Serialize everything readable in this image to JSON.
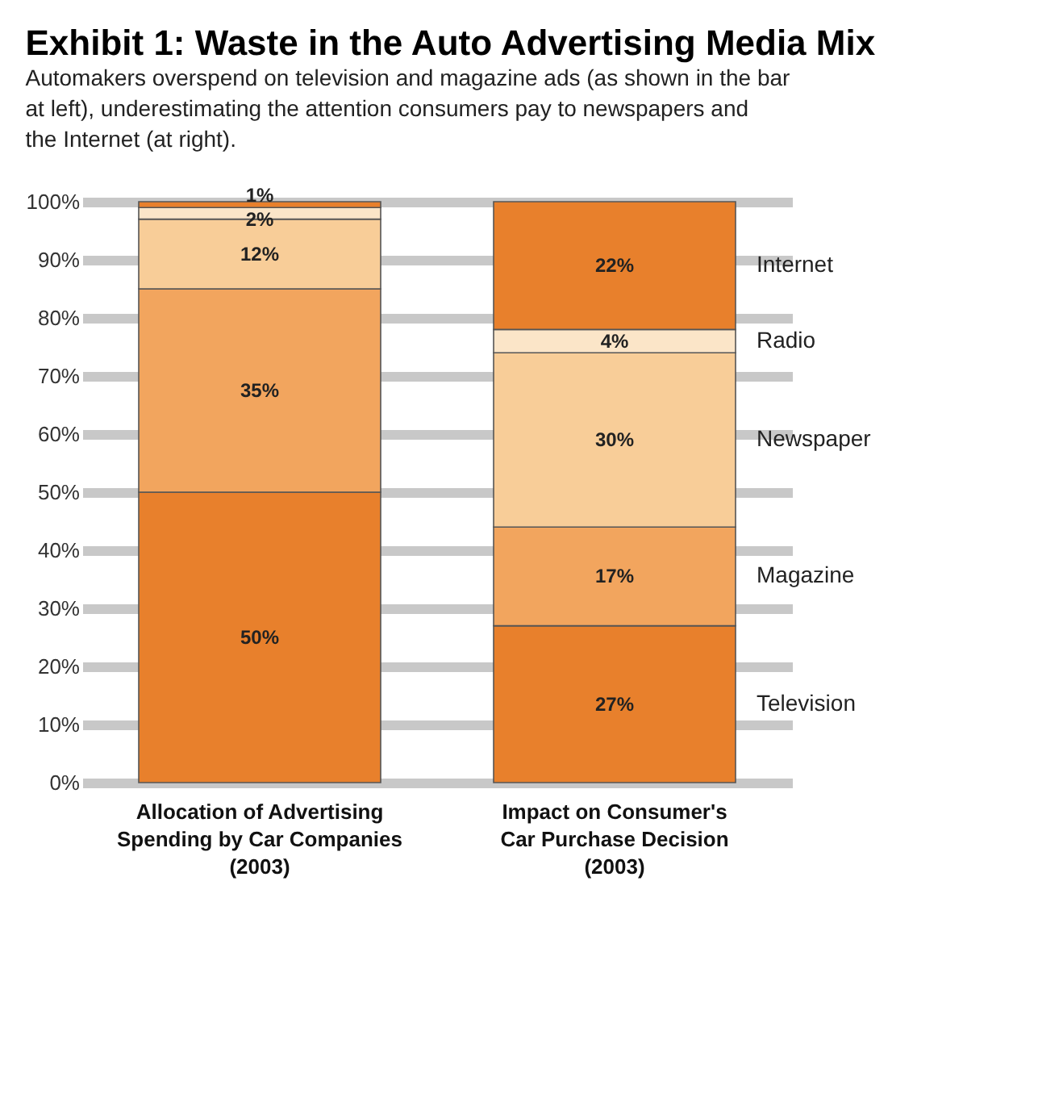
{
  "chart_data": {
    "type": "bar",
    "stacked": true,
    "title": "Exhibit 1: Waste in the Auto Advertising Media Mix",
    "subtitle": "Automakers overspend on television and magazine ads (as shown in the bar at left), underestimating the attention consumers pay to newspapers and the Internet  (at right).",
    "categories": [
      "Allocation of Advertising\nSpending by Car Companies\n(2003)",
      "Impact on Consumer's\nCar Purchase Decision\n(2003)"
    ],
    "series": [
      {
        "name": "Television",
        "color": "#e8802c",
        "values": [
          50,
          27
        ],
        "value_labels": [
          "50%",
          "27%"
        ]
      },
      {
        "name": "Magazine",
        "color": "#f2a55e",
        "values": [
          35,
          17
        ],
        "value_labels": [
          "35%",
          "17%"
        ]
      },
      {
        "name": "Newspaper",
        "color": "#f8cd98",
        "values": [
          12,
          30
        ],
        "value_labels": [
          "12%",
          "30%"
        ]
      },
      {
        "name": "Radio",
        "color": "#fbe5c8",
        "values": [
          2,
          4
        ],
        "value_labels": [
          "2%",
          "4%"
        ]
      },
      {
        "name": "Internet",
        "color": "#e8802c",
        "values": [
          1,
          22
        ],
        "value_labels": [
          "1%",
          "22%"
        ]
      }
    ],
    "ylim": [
      0,
      100
    ],
    "yticks": [
      {
        "value": 0,
        "label": "0%"
      },
      {
        "value": 10,
        "label": "10%"
      },
      {
        "value": 20,
        "label": "20%"
      },
      {
        "value": 30,
        "label": "30%"
      },
      {
        "value": 40,
        "label": "40%"
      },
      {
        "value": 50,
        "label": "50%"
      },
      {
        "value": 60,
        "label": "60%"
      },
      {
        "value": 70,
        "label": "70%"
      },
      {
        "value": 80,
        "label": "80%"
      },
      {
        "value": 90,
        "label": "90%"
      },
      {
        "value": 100,
        "label": "100%"
      }
    ],
    "grid": "y"
  }
}
